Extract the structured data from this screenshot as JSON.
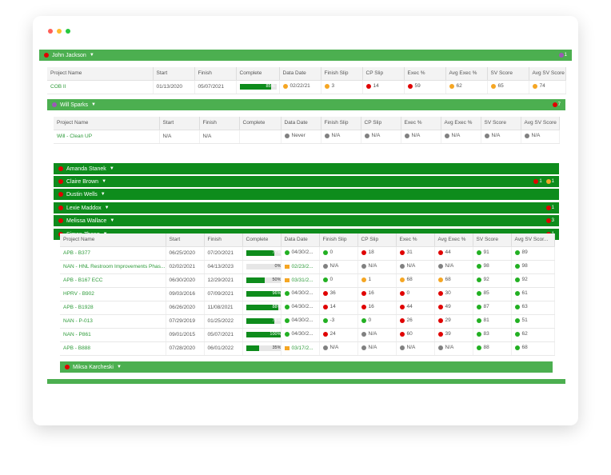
{
  "colors": {
    "red": "#e00000",
    "orange": "#f5a623",
    "green": "#22b022",
    "gray": "#808080",
    "purple": "#9b59b6",
    "group_light": "#4caf50",
    "group_dark": "#0e8c1c"
  },
  "columns": [
    "Project Name",
    "Start",
    "Finish",
    "Complete",
    "Data Date",
    "Finish Slip",
    "CP Slip",
    "Exec %",
    "Avg Exec %",
    "SV Score",
    "Avg SV Score"
  ],
  "columns_truncated_last": "Avg SV Scor...",
  "john": {
    "name": "John Jackson",
    "lead_dot": "red",
    "badges": [
      {
        "color": "purple",
        "count": "1"
      }
    ],
    "rows": [
      {
        "project": "COB II",
        "start": "01/13/2020",
        "finish": "05/07/2021",
        "complete": 85,
        "complete_label": "85%",
        "data_date": "02/22/21",
        "data_date_mark": "orange-dot",
        "finish_slip": "3",
        "finish_slip_color": "orange",
        "cp_slip": "14",
        "cp_slip_color": "red",
        "exec": "59",
        "exec_color": "red",
        "avg_exec": "62",
        "avg_exec_color": "orange",
        "sv": "65",
        "sv_color": "orange",
        "avg_sv": "74",
        "avg_sv_color": "orange"
      }
    ]
  },
  "will": {
    "name": "Will Sparks",
    "lead_dot": "purple",
    "badges": [
      {
        "color": "red",
        "count": "7"
      }
    ],
    "rows": [
      {
        "project": "Will - Clean UP",
        "start": "N/A",
        "finish": "N/A",
        "complete": null,
        "complete_label": "",
        "data_date": "Never",
        "data_date_mark": "gray-dot",
        "finish_slip": "N/A",
        "finish_slip_color": "gray",
        "cp_slip": "N/A",
        "cp_slip_color": "gray",
        "exec": "N/A",
        "exec_color": "gray",
        "avg_exec": "N/A",
        "avg_exec_color": "gray",
        "sv": "N/A",
        "sv_color": "gray",
        "avg_sv": "N/A",
        "avg_sv_color": "gray"
      }
    ]
  },
  "subgroups": [
    {
      "name": "Amanda Stanek",
      "lead_dot": "red",
      "badges": []
    },
    {
      "name": "Claire Brown",
      "lead_dot": "red",
      "badges": [
        {
          "color": "red",
          "count": "1"
        },
        {
          "color": "orange",
          "count": "1"
        }
      ]
    },
    {
      "name": "Dustin Wells",
      "lead_dot": "red",
      "badges": []
    },
    {
      "name": "Lexie Maddox",
      "lead_dot": "red",
      "badges": [
        {
          "color": "red",
          "count": "1"
        }
      ]
    },
    {
      "name": "Melissa Wallace",
      "lead_dot": "red",
      "badges": [
        {
          "color": "red",
          "count": "3"
        }
      ]
    },
    {
      "name": "Simon Zhang",
      "lead_dot": "red",
      "badges": [
        {
          "color": "red",
          "count": "1"
        }
      ]
    }
  ],
  "simon_rows": [
    {
      "project": "APB - B377",
      "start": "06/25/2020",
      "finish": "07/20/2021",
      "complete": 77,
      "complete_label": "77%",
      "data_date": "04/30/2...",
      "data_date_mark": "green-dot",
      "data_date_link": false,
      "finish_slip": "0",
      "finish_slip_color": "green",
      "cp_slip": "18",
      "cp_slip_color": "red",
      "exec": "31",
      "exec_color": "red",
      "avg_exec": "44",
      "avg_exec_color": "red",
      "sv": "91",
      "sv_color": "green",
      "avg_sv": "89",
      "avg_sv_color": "green"
    },
    {
      "project": "NAN - HNL Restroom Improvements Phas...",
      "start": "02/02/2021",
      "finish": "04/13/2023",
      "complete": 0,
      "complete_label": "0%",
      "data_date": "02/23/2...",
      "data_date_mark": "orange-sq",
      "data_date_link": true,
      "finish_slip": "N/A",
      "finish_slip_color": "gray",
      "cp_slip": "N/A",
      "cp_slip_color": "gray",
      "exec": "N/A",
      "exec_color": "gray",
      "avg_exec": "N/A",
      "avg_exec_color": "gray",
      "sv": "98",
      "sv_color": "green",
      "avg_sv": "98",
      "avg_sv_color": "green"
    },
    {
      "project": "APB - B167 ECC",
      "start": "06/30/2020",
      "finish": "12/29/2021",
      "complete": 50,
      "complete_label": "50%",
      "data_date": "03/31/2...",
      "data_date_mark": "orange-sq",
      "data_date_link": true,
      "finish_slip": "0",
      "finish_slip_color": "green",
      "cp_slip": "1",
      "cp_slip_color": "orange",
      "exec": "68",
      "exec_color": "orange",
      "avg_exec": "68",
      "avg_exec_color": "orange",
      "sv": "92",
      "sv_color": "green",
      "avg_sv": "92",
      "avg_sv_color": "green"
    },
    {
      "project": "HPRV - B902",
      "start": "09/03/2016",
      "finish": "07/09/2021",
      "complete": 96,
      "complete_label": "96%",
      "data_date": "04/30/2...",
      "data_date_mark": "green-dot",
      "data_date_link": false,
      "finish_slip": "36",
      "finish_slip_color": "red",
      "cp_slip": "16",
      "cp_slip_color": "red",
      "exec": "0",
      "exec_color": "red",
      "avg_exec": "30",
      "avg_exec_color": "red",
      "sv": "85",
      "sv_color": "green",
      "avg_sv": "61",
      "avg_sv_color": "green"
    },
    {
      "project": "APB - B1928",
      "start": "06/26/2020",
      "finish": "11/08/2021",
      "complete": 88,
      "complete_label": "88%",
      "data_date": "04/30/2...",
      "data_date_mark": "green-dot",
      "data_date_link": false,
      "finish_slip": "14",
      "finish_slip_color": "red",
      "cp_slip": "16",
      "cp_slip_color": "red",
      "exec": "44",
      "exec_color": "red",
      "avg_exec": "49",
      "avg_exec_color": "red",
      "sv": "87",
      "sv_color": "green",
      "avg_sv": "63",
      "avg_sv_color": "green"
    },
    {
      "project": "NAN - P-013",
      "start": "07/29/2019",
      "finish": "01/25/2022",
      "complete": 78,
      "complete_label": "78%",
      "data_date": "04/30/2...",
      "data_date_mark": "green-dot",
      "data_date_link": false,
      "finish_slip": "-3",
      "finish_slip_color": "green",
      "cp_slip": "0",
      "cp_slip_color": "green",
      "exec": "26",
      "exec_color": "red",
      "avg_exec": "29",
      "avg_exec_color": "red",
      "sv": "81",
      "sv_color": "green",
      "avg_sv": "51",
      "avg_sv_color": "green"
    },
    {
      "project": "NAN - P861",
      "start": "09/01/2015",
      "finish": "05/07/2021",
      "complete": 100,
      "complete_label": "100%",
      "data_date": "04/30/2...",
      "data_date_mark": "green-dot",
      "data_date_link": false,
      "finish_slip": "24",
      "finish_slip_color": "red",
      "cp_slip": "N/A",
      "cp_slip_color": "gray",
      "exec": "60",
      "exec_color": "red",
      "avg_exec": "39",
      "avg_exec_color": "red",
      "sv": "83",
      "sv_color": "green",
      "avg_sv": "62",
      "avg_sv_color": "green"
    },
    {
      "project": "APB - B888",
      "start": "07/28/2020",
      "finish": "06/01/2022",
      "complete": 35,
      "complete_label": "35%",
      "data_date": "03/17/2...",
      "data_date_mark": "orange-sq",
      "data_date_link": true,
      "finish_slip": "N/A",
      "finish_slip_color": "gray",
      "cp_slip": "N/A",
      "cp_slip_color": "gray",
      "exec": "N/A",
      "exec_color": "gray",
      "avg_exec": "N/A",
      "avg_exec_color": "gray",
      "sv": "88",
      "sv_color": "green",
      "avg_sv": "68",
      "avg_sv_color": "green"
    }
  ],
  "miksa": {
    "name": "Miksa Karcheski",
    "lead_dot": "red",
    "badges": []
  }
}
